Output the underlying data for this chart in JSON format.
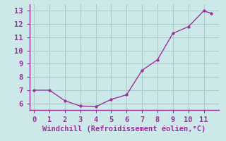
{
  "x": [
    0,
    1,
    2,
    3,
    4,
    5,
    6,
    7,
    8,
    9,
    10,
    11,
    11.5
  ],
  "y": [
    7.0,
    7.0,
    6.2,
    5.8,
    5.75,
    6.3,
    6.65,
    8.5,
    9.3,
    11.3,
    11.8,
    13.0,
    12.8
  ],
  "line_color": "#993399",
  "marker_color": "#993399",
  "bg_color": "#cce8e8",
  "grid_color": "#aacccc",
  "axis_color": "#993399",
  "xlabel": "Windchill (Refroidissement éolien,°C)",
  "xlabel_color": "#993399",
  "xlim": [
    -0.3,
    12.0
  ],
  "ylim": [
    5.5,
    13.5
  ],
  "xticks": [
    0,
    1,
    2,
    3,
    4,
    5,
    6,
    7,
    8,
    9,
    10,
    11
  ],
  "yticks": [
    6,
    7,
    8,
    9,
    10,
    11,
    12,
    13
  ],
  "tick_label_color": "#993399",
  "font_size_label": 7.5,
  "font_size_tick": 7.5,
  "line_width": 1.0,
  "marker_size": 2.5
}
